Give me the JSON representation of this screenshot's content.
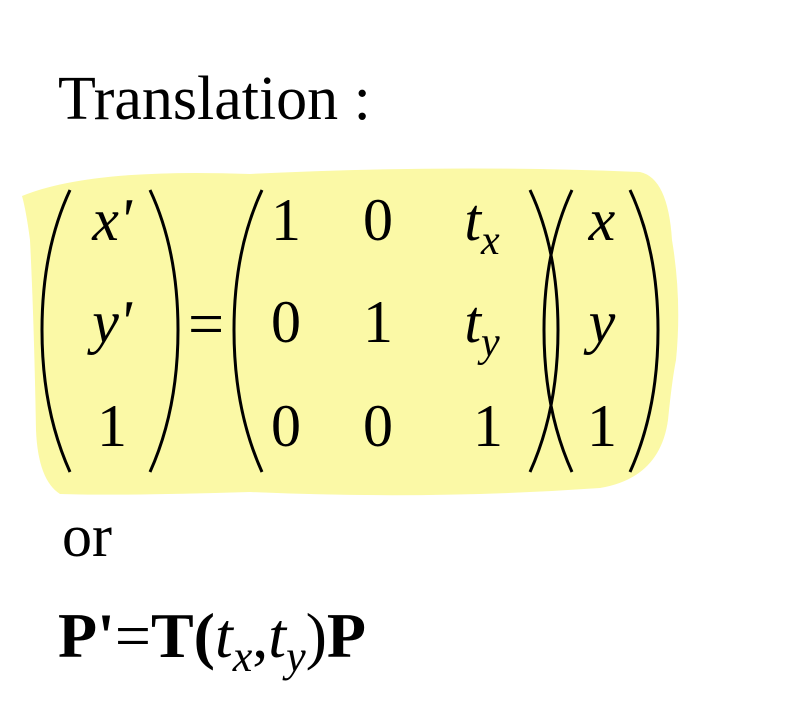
{
  "title": "Translation :",
  "lhs": [
    "x'",
    "y'",
    "1"
  ],
  "equals": "=",
  "matrix": [
    [
      {
        "t": "1"
      },
      {
        "t": "0"
      },
      {
        "t": "t",
        "sub": "x"
      }
    ],
    [
      {
        "t": "0"
      },
      {
        "t": "1"
      },
      {
        "t": "t",
        "sub": "y"
      }
    ],
    [
      {
        "t": "0"
      },
      {
        "t": "0"
      },
      {
        "t": "1"
      }
    ]
  ],
  "rhs": [
    "x",
    "y",
    "1"
  ],
  "or_text": "or",
  "formula": {
    "p_prime": "P'",
    "equals": "=",
    "t_op": "T(",
    "t1": "t",
    "sub1": "x",
    "comma": ",",
    "t2": "t",
    "sub2": "y",
    "close": ")",
    "p": "P"
  },
  "highlight_color": "#fbf9a6"
}
